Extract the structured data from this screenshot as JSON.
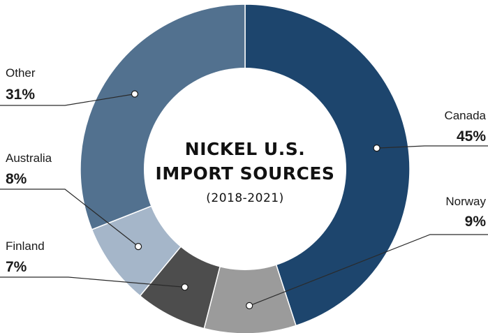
{
  "chart_data": {
    "type": "pie",
    "title_line1": "NICKEL U.S.",
    "title_line2": "IMPORT SOURCES",
    "subtitle": "(2018-2021)",
    "slices": [
      {
        "label": "Canada",
        "value_label": "45%",
        "value": 45,
        "color": "#1d456d"
      },
      {
        "label": "Norway",
        "value_label": "9%",
        "value": 9,
        "color": "#9b9b9b"
      },
      {
        "label": "Finland",
        "value_label": "7%",
        "value": 7,
        "color": "#4d4d4d"
      },
      {
        "label": "Australia",
        "value_label": "8%",
        "value": 8,
        "color": "#a5b6c9"
      },
      {
        "label": "Other",
        "value_label": "31%",
        "value": 31,
        "color": "#52718f"
      }
    ]
  }
}
